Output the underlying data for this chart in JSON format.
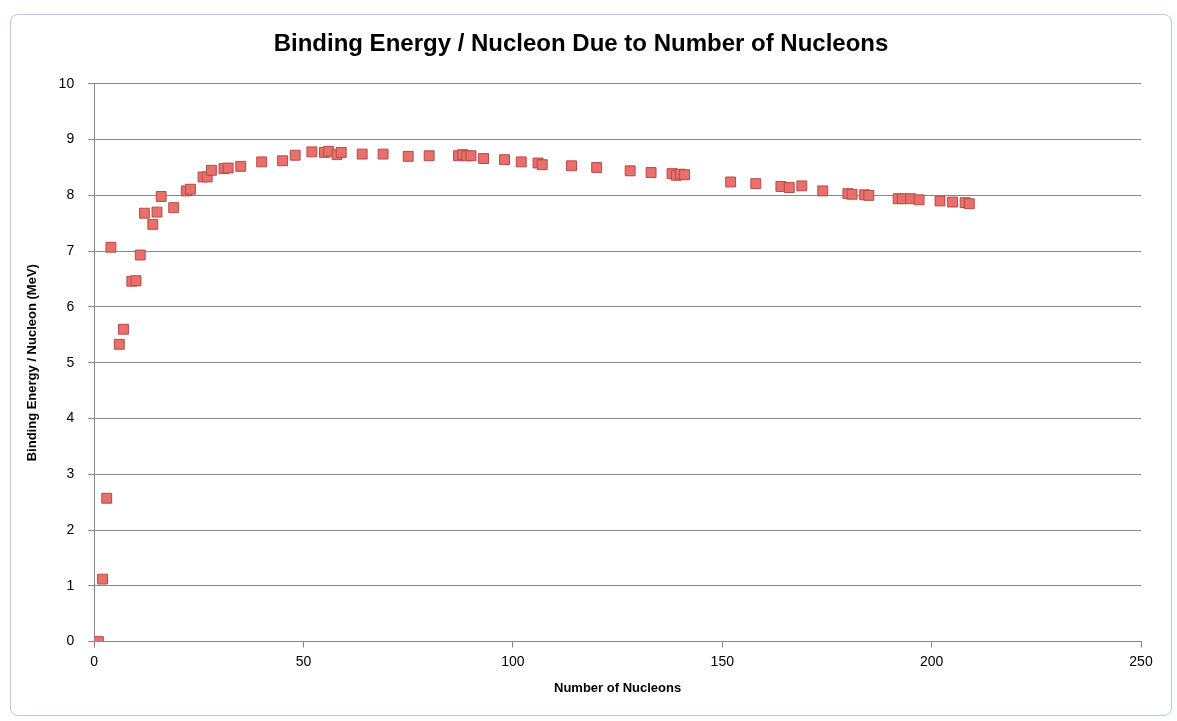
{
  "chart_data": {
    "type": "scatter",
    "title": "Binding Energy / Nucleon Due to Number of Nucleons",
    "xlabel": "Number of Nucleons",
    "ylabel": "Binding Energy / Nucleon (MeV)",
    "xlim": [
      0,
      250
    ],
    "xticks": [
      0,
      50,
      100,
      150,
      200,
      250
    ],
    "ylim": [
      0,
      10
    ],
    "yticks": [
      0,
      1,
      2,
      3,
      4,
      5,
      6,
      7,
      8,
      9,
      10
    ],
    "grid": "y",
    "legend": false,
    "marker": "square",
    "x": [
      1,
      2,
      3,
      4,
      6,
      7,
      9,
      10,
      11,
      12,
      14,
      15,
      16,
      19,
      22,
      23,
      26,
      27,
      28,
      31,
      32,
      35,
      40,
      45,
      48,
      52,
      55,
      56,
      58,
      59,
      64,
      69,
      75,
      80,
      87,
      88,
      89,
      90,
      93,
      98,
      102,
      106,
      107,
      114,
      120,
      128,
      133,
      138,
      139,
      140,
      141,
      152,
      158,
      164,
      166,
      169,
      174,
      180,
      181,
      184,
      185,
      192,
      193,
      195,
      197,
      202,
      205,
      208,
      209
    ],
    "series": [
      {
        "color": "#e8706c",
        "values": [
          0,
          1.12,
          2.57,
          7.07,
          5.33,
          5.6,
          6.46,
          6.47,
          6.93,
          7.68,
          7.48,
          7.7,
          7.98,
          7.78,
          8.08,
          8.11,
          8.33,
          8.33,
          8.45,
          8.48,
          8.49,
          8.52,
          8.6,
          8.62,
          8.72,
          8.78,
          8.77,
          8.79,
          8.73,
          8.77,
          8.74,
          8.74,
          8.7,
          8.71,
          8.71,
          8.73,
          8.71,
          8.71,
          8.66,
          8.64,
          8.6,
          8.58,
          8.55,
          8.53,
          8.5,
          8.44,
          8.41,
          8.39,
          8.36,
          8.38,
          8.37,
          8.24,
          8.21,
          8.16,
          8.14,
          8.17,
          8.08,
          8.03,
          8.02,
          8.01,
          8.0,
          7.94,
          7.94,
          7.94,
          7.92,
          7.9,
          7.88,
          7.87,
          7.85
        ]
      }
    ]
  }
}
